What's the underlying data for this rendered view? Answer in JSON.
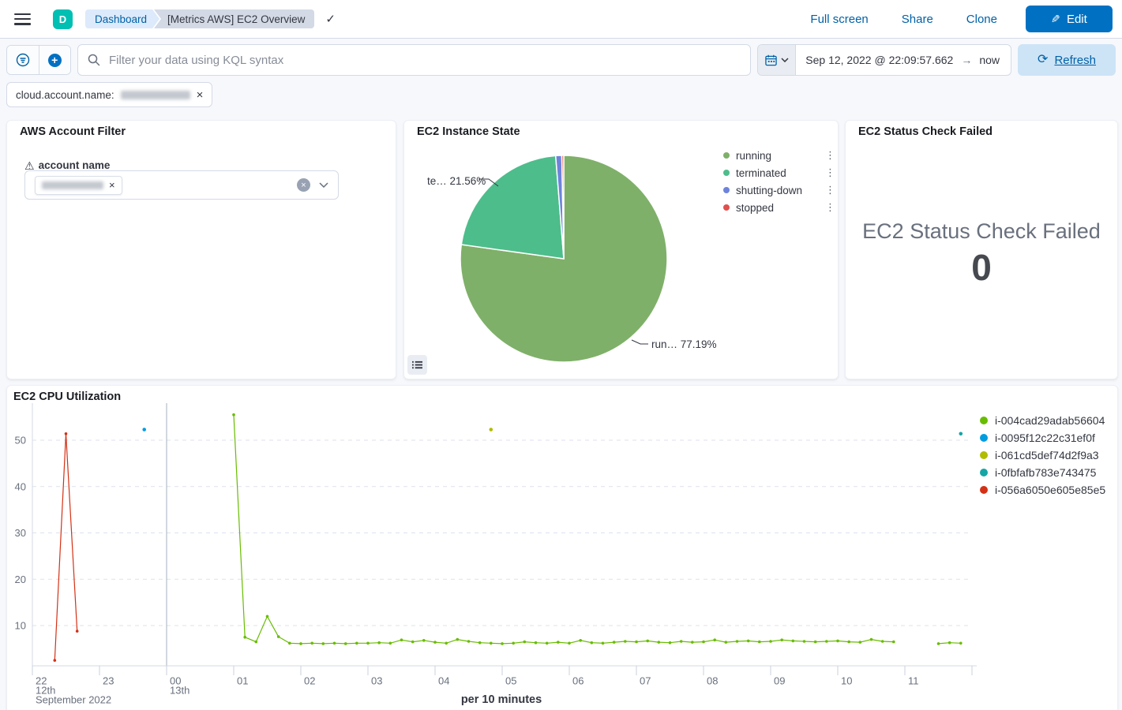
{
  "header": {
    "avatar_initial": "D",
    "breadcrumbs": [
      "Dashboard",
      "[Metrics AWS] EC2 Overview"
    ],
    "actions": {
      "full_screen": "Full screen",
      "share": "Share",
      "clone": "Clone",
      "edit": "Edit"
    }
  },
  "toolbar": {
    "search_placeholder": "Filter your data using KQL syntax",
    "date_start": "Sep 12, 2022 @ 22:09:57.662",
    "date_end": "now",
    "refresh_label": "Refresh"
  },
  "filter_bar": {
    "pill_label": "cloud.account.name:",
    "value_blurred": true
  },
  "panels": {
    "account_filter": {
      "title": "AWS Account Filter",
      "field_label": "account name",
      "value_blurred": true
    },
    "instance_state": {
      "title": "EC2 Instance State"
    },
    "status_check": {
      "title": "EC2 Status Check Failed",
      "metric_label": "EC2 Status Check Failed",
      "metric_value": "0"
    },
    "cpu": {
      "title": "EC2 CPU Utilization"
    }
  },
  "colors": {
    "primary_blue": "#0071c2",
    "link_blue": "#0061a6",
    "avatar_teal": "#00bfb3"
  },
  "chart_data": [
    {
      "type": "pie",
      "title": "EC2 Instance State",
      "labels": [
        "running",
        "terminated",
        "shutting-down",
        "stopped"
      ],
      "values": [
        77.19,
        21.56,
        0.95,
        0.3
      ],
      "colors": [
        "#7FB069",
        "#4DBD8B",
        "#6D83DB",
        "#E0504E"
      ],
      "callouts": [
        "te…  21.56%",
        "run…  77.19%"
      ],
      "legend_position": "right"
    },
    {
      "type": "line",
      "title": "EC2 CPU Utilization",
      "xlabel": "per 10 minutes",
      "ylabel": "",
      "x_ticks": [
        "22",
        "23",
        "00",
        "01",
        "02",
        "03",
        "04",
        "05",
        "06",
        "07",
        "08",
        "09",
        "10",
        "11"
      ],
      "x_context": {
        "start_day": "12th",
        "start_month": "September 2022",
        "midnight_day": "13th"
      },
      "y_ticks": [
        10,
        20,
        30,
        40,
        50
      ],
      "ylim": [
        0,
        56
      ],
      "grid": "horizontal-dashed",
      "legend_position": "right",
      "series": [
        {
          "name": "i-004cad29adab56604",
          "color": "#68BC00",
          "segments": [
            [
              [
                "01:00",
                55.5
              ],
              [
                "01:10",
                7.5
              ],
              [
                "01:20",
                6.5
              ],
              [
                "01:30",
                12
              ],
              [
                "01:40",
                7.6
              ],
              [
                "01:50",
                6.2
              ],
              [
                "02:00",
                6.1
              ],
              [
                "02:10",
                6.2
              ],
              [
                "02:20",
                6.1
              ],
              [
                "02:30",
                6.2
              ],
              [
                "02:40",
                6.1
              ],
              [
                "02:50",
                6.2
              ],
              [
                "03:00",
                6.2
              ],
              [
                "03:10",
                6.3
              ],
              [
                "03:20",
                6.2
              ],
              [
                "03:30",
                6.9
              ],
              [
                "03:40",
                6.5
              ],
              [
                "03:50",
                6.8
              ],
              [
                "04:00",
                6.4
              ],
              [
                "04:10",
                6.2
              ],
              [
                "04:20",
                7
              ],
              [
                "04:30",
                6.6
              ],
              [
                "04:40",
                6.3
              ],
              [
                "04:50",
                6.2
              ],
              [
                "05:00",
                6.1
              ],
              [
                "05:10",
                6.2
              ],
              [
                "05:20",
                6.5
              ],
              [
                "05:30",
                6.3
              ],
              [
                "05:40",
                6.2
              ],
              [
                "05:50",
                6.4
              ],
              [
                "06:00",
                6.2
              ],
              [
                "06:10",
                6.8
              ],
              [
                "06:20",
                6.3
              ],
              [
                "06:30",
                6.2
              ],
              [
                "06:40",
                6.4
              ],
              [
                "06:50",
                6.6
              ],
              [
                "07:00",
                6.5
              ],
              [
                "07:10",
                6.7
              ],
              [
                "07:20",
                6.4
              ],
              [
                "07:30",
                6.3
              ],
              [
                "07:40",
                6.6
              ],
              [
                "07:50",
                6.4
              ],
              [
                "08:00",
                6.5
              ],
              [
                "08:10",
                6.9
              ],
              [
                "08:20",
                6.4
              ],
              [
                "08:30",
                6.6
              ],
              [
                "08:40",
                6.7
              ],
              [
                "08:50",
                6.5
              ],
              [
                "09:00",
                6.6
              ],
              [
                "09:10",
                6.9
              ],
              [
                "09:20",
                6.7
              ],
              [
                "09:30",
                6.6
              ],
              [
                "09:40",
                6.5
              ],
              [
                "09:50",
                6.6
              ],
              [
                "10:00",
                6.7
              ],
              [
                "10:10",
                6.5
              ],
              [
                "10:20",
                6.4
              ],
              [
                "10:30",
                7
              ],
              [
                "10:40",
                6.6
              ],
              [
                "10:50",
                6.5
              ]
            ],
            [
              [
                "11:30",
                6.1
              ],
              [
                "11:40",
                6.3
              ],
              [
                "11:50",
                6.2
              ]
            ]
          ]
        },
        {
          "name": "i-0095f12c22c31ef0f",
          "color": "#009CE0",
          "segments": [
            [
              [
                "23:40",
                52.3
              ]
            ]
          ]
        },
        {
          "name": "i-061cd5def74d2f9a3",
          "color": "#B0BC00",
          "segments": [
            [
              [
                "04:50",
                52.3
              ]
            ]
          ]
        },
        {
          "name": "i-0fbfafb783e743475",
          "color": "#16A5A5",
          "segments": [
            [
              [
                "11:50",
                51.4
              ]
            ]
          ]
        },
        {
          "name": "i-056a6050e605e85e5",
          "color": "#D33115",
          "segments": [
            [
              [
                "22:20",
                2.5
              ],
              [
                "22:30",
                51.4
              ],
              [
                "22:40",
                8.8
              ]
            ]
          ]
        }
      ]
    }
  ]
}
